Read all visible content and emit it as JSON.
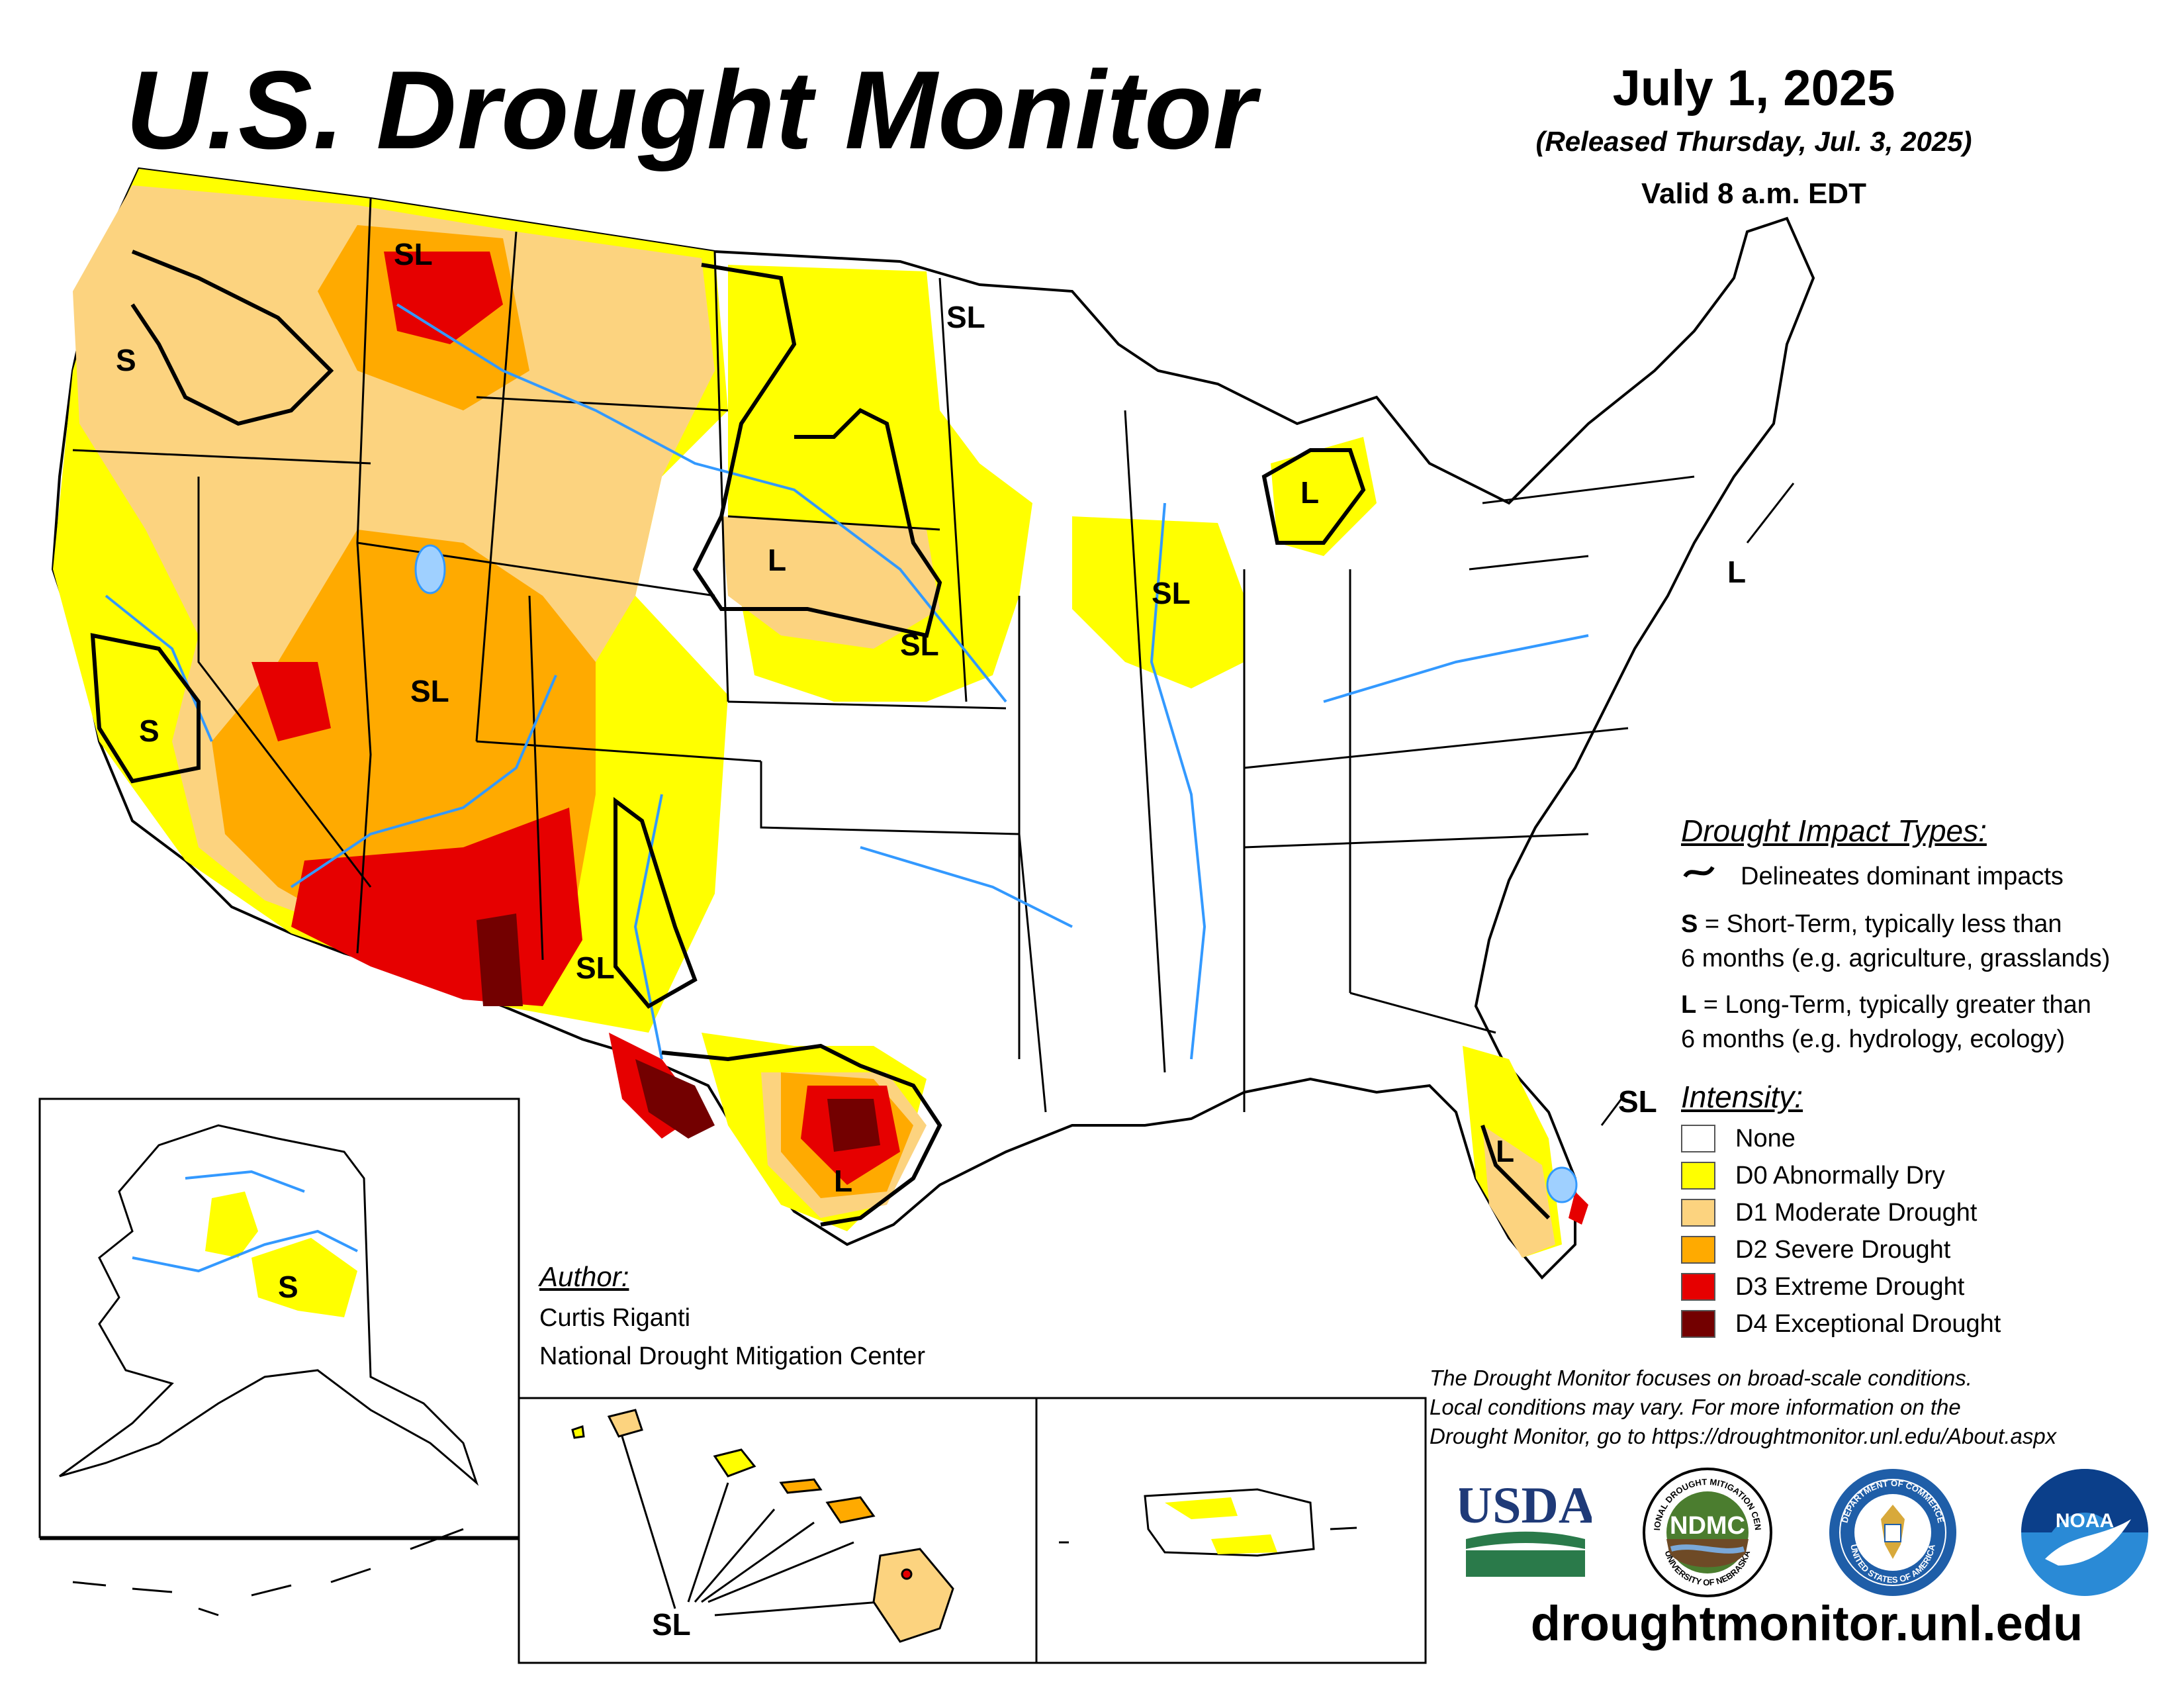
{
  "header": {
    "title": "U.S. Drought Monitor",
    "date": "July 1, 2025",
    "released": "(Released Thursday, Jul. 3, 2025)",
    "valid": "Valid 8 a.m. EDT"
  },
  "map_labels": {
    "sl": "SL",
    "s": "S",
    "l": "L"
  },
  "impact_legend": {
    "heading": "Drought Impact Types:",
    "delineates": "Delineates dominant impacts",
    "s_key": "S",
    "s_text": " = Short-Term, typically less than",
    "s_text2": "6 months (e.g. agriculture, grasslands)",
    "l_key": "L",
    "l_text": " = Long-Term, typically greater than",
    "l_text2": "6 months (e.g. hydrology, ecology)"
  },
  "intensity_legend": {
    "heading": "Intensity:",
    "items": [
      {
        "label": "None",
        "color": "#ffffff"
      },
      {
        "label": "D0 Abnormally Dry",
        "color": "#ffff00"
      },
      {
        "label": "D1 Moderate Drought",
        "color": "#fcd37f"
      },
      {
        "label": "D2 Severe Drought",
        "color": "#ffaa00"
      },
      {
        "label": "D3 Extreme Drought",
        "color": "#e60000"
      },
      {
        "label": "D4 Exceptional Drought",
        "color": "#730000"
      }
    ]
  },
  "author": {
    "heading": "Author:",
    "name": "Curtis Riganti",
    "org": "National Drought Mitigation Center"
  },
  "disclaimer": {
    "line1": "The Drought Monitor focuses on broad-scale conditions.",
    "line2": "Local conditions may vary. For more information on the",
    "line3": "Drought Monitor, go to https://droughtmonitor.unl.edu/About.aspx"
  },
  "logos": {
    "usda": "USDA",
    "ndmc": "NDMC",
    "ndmc_ring_top": "NATIONAL DROUGHT MITIGATION CENTER",
    "ndmc_ring_bottom": "UNIVERSITY OF NEBRASKA",
    "commerce_ring_top": "DEPARTMENT OF COMMERCE",
    "commerce_ring_bottom": "UNITED STATES OF AMERICA",
    "noaa": "NOAA"
  },
  "footer": {
    "website": "droughtmonitor.unl.edu"
  },
  "colors": {
    "d0": "#ffff00",
    "d1": "#fcd37f",
    "d2": "#ffaa00",
    "d3": "#e60000",
    "d4": "#730000",
    "water": "#3399ff"
  }
}
